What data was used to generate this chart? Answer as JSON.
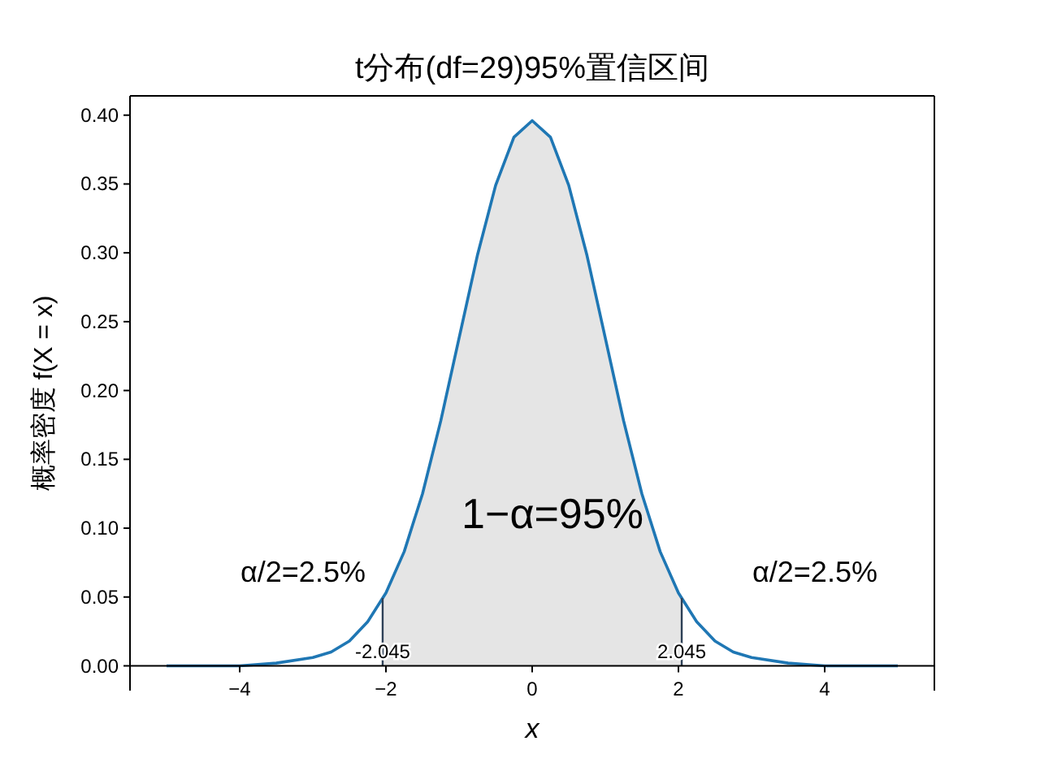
{
  "chart_data": {
    "type": "line",
    "title": "t分布(df=29)95%置信区间",
    "xlabel": "x",
    "ylabel": "概率密度 f(X = x)",
    "x": [
      -5,
      -4.5,
      -4,
      -3.5,
      -3,
      -2.75,
      -2.5,
      -2.25,
      -2,
      -1.75,
      -1.5,
      -1.25,
      -1,
      -0.75,
      -0.5,
      -0.25,
      0,
      0.25,
      0.5,
      0.75,
      1,
      1.25,
      1.5,
      1.75,
      2,
      2.25,
      2.5,
      2.75,
      3,
      3.5,
      4,
      4.5,
      5
    ],
    "series": [
      {
        "type": "area",
        "color": "#e5e5e5",
        "x": [
          -2.045,
          -2,
          -1.75,
          -1.5,
          -1.25,
          -1,
          -0.75,
          -0.5,
          -0.25,
          0,
          0.25,
          0.5,
          0.75,
          1,
          1.25,
          1.5,
          1.75,
          2,
          2.045
        ],
        "values": [
          0.049,
          0.053,
          0.083,
          0.125,
          0.178,
          0.238,
          0.298,
          0.349,
          0.384,
          0.396,
          0.384,
          0.349,
          0.298,
          0.238,
          0.178,
          0.125,
          0.083,
          0.053,
          0.049
        ]
      },
      {
        "color": "#1f77b4",
        "values": [
          0.0,
          0.0,
          0.0,
          0.002,
          0.006,
          0.01,
          0.018,
          0.032,
          0.053,
          0.083,
          0.125,
          0.178,
          0.238,
          0.298,
          0.349,
          0.384,
          0.396,
          0.384,
          0.349,
          0.298,
          0.238,
          0.178,
          0.125,
          0.083,
          0.053,
          0.032,
          0.018,
          0.01,
          0.006,
          0.002,
          0.0,
          0.0,
          0.0
        ]
      }
    ],
    "xlim": [
      -5.5,
      5.5
    ],
    "ylim": [
      -0.018,
      0.414
    ],
    "xticks": [
      -4,
      -2,
      0,
      2,
      4
    ],
    "yticks": [
      {
        "value": 0,
        "label": "0.00"
      },
      {
        "value": 0.05,
        "label": "0.05"
      },
      {
        "value": 0.1,
        "label": "0.10"
      },
      {
        "value": 0.15,
        "label": "0.15"
      },
      {
        "value": 0.2,
        "label": "0.20"
      },
      {
        "value": 0.25,
        "label": "0.25"
      },
      {
        "value": 0.3,
        "label": "0.30"
      },
      {
        "value": 0.35,
        "label": "0.35"
      },
      {
        "value": 0.4,
        "label": "0.40"
      }
    ],
    "ref_lines": [
      {
        "axis": "x",
        "value": -2.045,
        "label": "-2.045",
        "color": "#2e4157"
      },
      {
        "axis": "x",
        "value": 2.045,
        "label": "2.045",
        "color": "#2e4157"
      }
    ],
    "annotations": [
      "1−α=95%",
      "α/2=2.5%",
      "α/2=2.5%"
    ],
    "grid": false,
    "marker": "none",
    "line_style": "solid"
  }
}
